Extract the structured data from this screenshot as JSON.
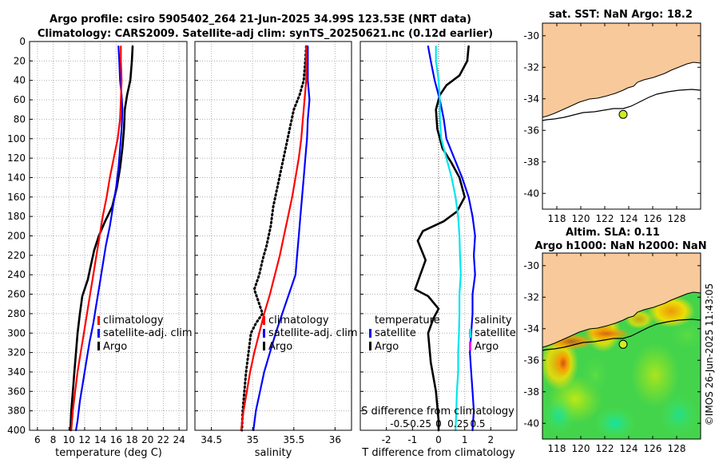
{
  "title": {
    "line1": "Argo profile: csiro 5905402_264 21-Jun-2025 34.99S 123.53E (NRT data)",
    "line2": "Climatology: CARS2009. Satellite-adj clim: synTS_20250621.nc (0.12d earlier)"
  },
  "timestamp": "©IMOS 26-Jun-2025 11:43:05",
  "colors": {
    "argo": "#000000",
    "climatology": "#ff0000",
    "satellite": "#0000ff",
    "salinity_diff": "#00e5ee",
    "magenta": "#ff00ff",
    "land": "#f8c99a",
    "grid": "#b0b0b0"
  },
  "chart_data": [
    {
      "id": "temperature",
      "type": "line",
      "xlabel": "temperature (deg C)",
      "ylabel": "",
      "xlim": [
        5,
        25
      ],
      "ylim": [
        400,
        0
      ],
      "xticks": [
        "6",
        "8",
        "10",
        "12",
        "14",
        "16",
        "18",
        "20",
        "22",
        "24"
      ],
      "xtick_values": [
        6,
        8,
        10,
        12,
        14,
        16,
        18,
        20,
        22,
        24
      ],
      "yticks": [
        "0",
        "20",
        "40",
        "60",
        "80",
        "100",
        "120",
        "140",
        "160",
        "180",
        "200",
        "220",
        "240",
        "260",
        "280",
        "300",
        "320",
        "340",
        "360",
        "380",
        "400"
      ],
      "ytick_values": [
        0,
        20,
        40,
        60,
        80,
        100,
        120,
        140,
        160,
        180,
        200,
        220,
        240,
        260,
        280,
        300,
        320,
        340,
        360,
        380,
        400
      ],
      "legend": [
        "climatology",
        "satellite-adj. clim",
        "Argo"
      ],
      "series": [
        {
          "name": "Argo",
          "color": "#000000",
          "style": "solid",
          "width": 2.6,
          "points": [
            [
              18.1,
              5
            ],
            [
              18.0,
              20
            ],
            [
              17.8,
              40
            ],
            [
              17.4,
              55
            ],
            [
              17.1,
              70
            ],
            [
              17.0,
              90
            ],
            [
              16.8,
              110
            ],
            [
              16.5,
              130
            ],
            [
              16.1,
              150
            ],
            [
              15.5,
              170
            ],
            [
              14.6,
              185
            ],
            [
              13.8,
              200
            ],
            [
              13.2,
              215
            ],
            [
              12.8,
              230
            ],
            [
              12.4,
              245
            ],
            [
              11.7,
              262
            ],
            [
              11.4,
              280
            ],
            [
              11.1,
              300
            ],
            [
              10.9,
              320
            ],
            [
              10.7,
              340
            ],
            [
              10.5,
              360
            ],
            [
              10.3,
              380
            ],
            [
              10.2,
              400
            ]
          ]
        },
        {
          "name": "satellite-adj. clim",
          "color": "#0000ff",
          "style": "solid",
          "width": 2.2,
          "points": [
            [
              16.3,
              5
            ],
            [
              16.4,
              20
            ],
            [
              16.5,
              40
            ],
            [
              16.7,
              55
            ],
            [
              16.8,
              70
            ],
            [
              16.7,
              90
            ],
            [
              16.5,
              110
            ],
            [
              16.3,
              130
            ],
            [
              16.0,
              150
            ],
            [
              15.6,
              170
            ],
            [
              15.2,
              190
            ],
            [
              14.7,
              210
            ],
            [
              14.3,
              230
            ],
            [
              13.9,
              250
            ],
            [
              13.5,
              270
            ],
            [
              13.1,
              290
            ],
            [
              12.6,
              310
            ],
            [
              12.2,
              330
            ],
            [
              11.8,
              350
            ],
            [
              11.4,
              370
            ],
            [
              11.1,
              390
            ],
            [
              10.9,
              400
            ]
          ]
        },
        {
          "name": "climatology",
          "color": "#ff0000",
          "style": "solid",
          "width": 2.2,
          "points": [
            [
              16.6,
              5
            ],
            [
              16.6,
              20
            ],
            [
              16.7,
              40
            ],
            [
              16.6,
              60
            ],
            [
              16.5,
              80
            ],
            [
              16.2,
              100
            ],
            [
              15.7,
              120
            ],
            [
              15.2,
              140
            ],
            [
              14.8,
              160
            ],
            [
              14.3,
              180
            ],
            [
              13.9,
              200
            ],
            [
              13.5,
              220
            ],
            [
              13.1,
              240
            ],
            [
              12.7,
              260
            ],
            [
              12.3,
              280
            ],
            [
              11.9,
              300
            ],
            [
              11.5,
              320
            ],
            [
              11.1,
              340
            ],
            [
              10.8,
              360
            ],
            [
              10.5,
              380
            ],
            [
              10.3,
              400
            ]
          ]
        }
      ]
    },
    {
      "id": "salinity",
      "type": "line",
      "xlabel": "salinity",
      "xlim": [
        34.3,
        36.2
      ],
      "ylim": [
        400,
        0
      ],
      "xticks": [
        "34.5",
        "35",
        "35.5",
        "36"
      ],
      "xtick_values": [
        34.5,
        35,
        35.5,
        36
      ],
      "legend": [
        "climatology",
        "satellite-adj. clim",
        "Argo"
      ],
      "series": [
        {
          "name": "Argo",
          "color": "#000000",
          "style": "dotted",
          "width": 2.6,
          "points": [
            [
              35.65,
              5
            ],
            [
              35.64,
              20
            ],
            [
              35.62,
              40
            ],
            [
              35.57,
              55
            ],
            [
              35.5,
              70
            ],
            [
              35.45,
              90
            ],
            [
              35.4,
              110
            ],
            [
              35.35,
              130
            ],
            [
              35.3,
              150
            ],
            [
              35.25,
              170
            ],
            [
              35.22,
              190
            ],
            [
              35.17,
              210
            ],
            [
              35.12,
              225
            ],
            [
              35.08,
              240
            ],
            [
              35.02,
              255
            ],
            [
              35.08,
              270
            ],
            [
              35.12,
              280
            ],
            [
              35.04,
              290
            ],
            [
              34.98,
              300
            ],
            [
              34.95,
              320
            ],
            [
              34.92,
              340
            ],
            [
              34.9,
              360
            ],
            [
              34.88,
              380
            ],
            [
              34.87,
              400
            ]
          ]
        },
        {
          "name": "satellite-adj. clim",
          "color": "#0000ff",
          "style": "solid",
          "width": 2.2,
          "points": [
            [
              35.67,
              5
            ],
            [
              35.67,
              20
            ],
            [
              35.67,
              40
            ],
            [
              35.69,
              60
            ],
            [
              35.67,
              80
            ],
            [
              35.66,
              100
            ],
            [
              35.64,
              120
            ],
            [
              35.62,
              140
            ],
            [
              35.6,
              160
            ],
            [
              35.58,
              180
            ],
            [
              35.56,
              200
            ],
            [
              35.54,
              220
            ],
            [
              35.52,
              240
            ],
            [
              35.44,
              260
            ],
            [
              35.36,
              280
            ],
            [
              35.28,
              300
            ],
            [
              35.21,
              320
            ],
            [
              35.14,
              340
            ],
            [
              35.09,
              360
            ],
            [
              35.04,
              380
            ],
            [
              35.01,
              400
            ]
          ]
        },
        {
          "name": "climatology",
          "color": "#ff0000",
          "style": "solid",
          "width": 2.2,
          "points": [
            [
              35.65,
              5
            ],
            [
              35.65,
              20
            ],
            [
              35.65,
              40
            ],
            [
              35.63,
              60
            ],
            [
              35.61,
              80
            ],
            [
              35.59,
              100
            ],
            [
              35.56,
              120
            ],
            [
              35.52,
              140
            ],
            [
              35.48,
              160
            ],
            [
              35.43,
              180
            ],
            [
              35.38,
              200
            ],
            [
              35.33,
              220
            ],
            [
              35.27,
              240
            ],
            [
              35.21,
              260
            ],
            [
              35.14,
              280
            ],
            [
              35.08,
              300
            ],
            [
              35.02,
              320
            ],
            [
              34.97,
              340
            ],
            [
              34.93,
              360
            ],
            [
              34.89,
              380
            ],
            [
              34.86,
              400
            ]
          ]
        }
      ]
    },
    {
      "id": "difference",
      "type": "line",
      "xlabel": "T difference from climatology",
      "xlabel_top": "S difference from climatology",
      "xlim": [
        -3,
        3
      ],
      "ylim": [
        400,
        0
      ],
      "xticks": [
        "-2",
        "-1",
        "0",
        "1",
        "2"
      ],
      "xtick_values": [
        -2,
        -1,
        0,
        1,
        2
      ],
      "sticks": [
        "-0.5",
        "-0.25",
        "0",
        "0.25",
        "0.5"
      ],
      "stick_values": [
        -1.5,
        -0.75,
        0,
        0.75,
        1.5
      ],
      "legend_left_title": "temperature",
      "legend_left": [
        "satellite",
        "Argo"
      ],
      "legend_right_title": "salinity",
      "legend_right": [
        "satellite",
        "Argo"
      ],
      "series": [
        {
          "name": "Argo temperature diff",
          "color": "#000000",
          "style": "solid",
          "width": 2.6,
          "points": [
            [
              1.15,
              5
            ],
            [
              1.1,
              20
            ],
            [
              0.8,
              35
            ],
            [
              0.3,
              45
            ],
            [
              0.05,
              55
            ],
            [
              -0.1,
              70
            ],
            [
              -0.05,
              90
            ],
            [
              0.15,
              110
            ],
            [
              0.5,
              125
            ],
            [
              0.8,
              140
            ],
            [
              1.0,
              160
            ],
            [
              0.7,
              175
            ],
            [
              0.2,
              185
            ],
            [
              -0.6,
              195
            ],
            [
              -0.8,
              205
            ],
            [
              -0.5,
              225
            ],
            [
              -0.7,
              240
            ],
            [
              -0.9,
              255
            ],
            [
              -0.4,
              262
            ],
            [
              0.0,
              275
            ],
            [
              -0.2,
              285
            ],
            [
              -0.4,
              300
            ],
            [
              -0.3,
              330
            ],
            [
              -0.1,
              360
            ],
            [
              0.0,
              390
            ],
            [
              0.0,
              400
            ]
          ]
        },
        {
          "name": "satellite temperature diff",
          "color": "#0000ff",
          "style": "solid",
          "width": 2.2,
          "points": [
            [
              -0.4,
              5
            ],
            [
              -0.3,
              20
            ],
            [
              -0.15,
              40
            ],
            [
              0.05,
              60
            ],
            [
              0.2,
              80
            ],
            [
              0.3,
              100
            ],
            [
              0.6,
              120
            ],
            [
              0.9,
              140
            ],
            [
              1.15,
              160
            ],
            [
              1.3,
              180
            ],
            [
              1.4,
              200
            ],
            [
              1.35,
              220
            ],
            [
              1.4,
              240
            ],
            [
              1.3,
              260
            ],
            [
              1.3,
              280
            ],
            [
              1.25,
              300
            ],
            [
              1.2,
              320
            ],
            [
              1.25,
              340
            ],
            [
              1.3,
              360
            ],
            [
              1.35,
              380
            ],
            [
              1.3,
              400
            ]
          ]
        },
        {
          "name": "satellite salinity diff",
          "color": "#00e5ee",
          "style": "solid",
          "width": 2.2,
          "points": [
            [
              -0.1,
              5
            ],
            [
              -0.1,
              20
            ],
            [
              0.0,
              40
            ],
            [
              0.05,
              60
            ],
            [
              0.05,
              80
            ],
            [
              0.1,
              100
            ],
            [
              0.3,
              120
            ],
            [
              0.5,
              140
            ],
            [
              0.65,
              160
            ],
            [
              0.75,
              180
            ],
            [
              0.8,
              200
            ],
            [
              0.82,
              220
            ],
            [
              0.85,
              240
            ],
            [
              0.8,
              260
            ],
            [
              0.8,
              280
            ],
            [
              0.78,
              300
            ],
            [
              0.75,
              320
            ],
            [
              0.75,
              340
            ],
            [
              0.7,
              360
            ],
            [
              0.68,
              380
            ],
            [
              0.65,
              400
            ]
          ]
        }
      ]
    },
    {
      "id": "map_sst",
      "type": "heatmap",
      "title": "sat. SST: NaN Argo: 18.2",
      "xlim": [
        116.8,
        130
      ],
      "ylim": [
        -41,
        -29.2
      ],
      "xticks": [
        "118",
        "120",
        "122",
        "124",
        "126",
        "128"
      ],
      "xtick_values": [
        118,
        120,
        122,
        124,
        126,
        128
      ],
      "yticks": [
        "-30",
        "-32",
        "-34",
        "-36",
        "-38",
        "-40"
      ],
      "ytick_values": [
        -30,
        -32,
        -34,
        -36,
        -38,
        -40
      ],
      "float_position": [
        123.53,
        -34.99
      ]
    },
    {
      "id": "map_sla",
      "type": "heatmap",
      "title_line1": "Altim. SLA: 0.11",
      "title_line2": "Argo h1000: NaN h2000: NaN",
      "xlim": [
        116.8,
        130
      ],
      "ylim": [
        -41,
        -29.2
      ],
      "xticks": [
        "118",
        "120",
        "122",
        "124",
        "126",
        "128"
      ],
      "xtick_values": [
        118,
        120,
        122,
        124,
        126,
        128
      ],
      "yticks": [
        "-30",
        "-32",
        "-34",
        "-36",
        "-38",
        "-40"
      ],
      "ytick_values": [
        -30,
        -32,
        -34,
        -36,
        -38,
        -40
      ],
      "float_position": [
        123.53,
        -34.99
      ]
    }
  ]
}
